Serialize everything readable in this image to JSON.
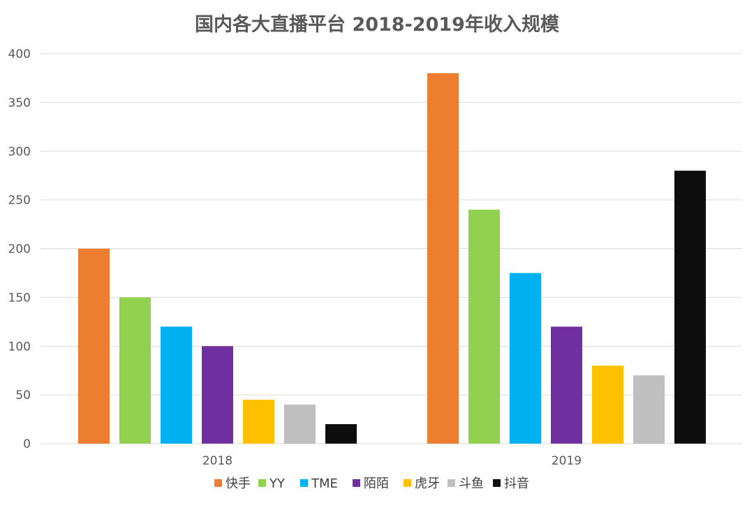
{
  "chart_data": {
    "type": "bar",
    "title": "国内各大直播平台 2018-2019年收入规模",
    "xlabel": "",
    "ylabel": "",
    "categories": [
      "2018",
      "2019"
    ],
    "ylim": [
      0,
      400
    ],
    "yticks": [
      0,
      50,
      100,
      150,
      200,
      250,
      300,
      350,
      400
    ],
    "grid": true,
    "legend_position": "bottom",
    "series": [
      {
        "name": "快手",
        "color": "#ED7D31",
        "values": [
          200,
          380
        ]
      },
      {
        "name": "YY",
        "color": "#92D050",
        "values": [
          150,
          240
        ]
      },
      {
        "name": "TME",
        "color": "#00B0F0",
        "values": [
          120,
          175
        ]
      },
      {
        "name": "陌陌",
        "color": "#7030A0",
        "values": [
          100,
          120
        ]
      },
      {
        "name": "虎牙",
        "color": "#FFC000",
        "values": [
          45,
          80
        ]
      },
      {
        "name": "斗鱼",
        "color": "#BFBFBF",
        "values": [
          40,
          70
        ]
      },
      {
        "name": "抖音",
        "color": "#0D0D0D",
        "values": [
          20,
          280
        ]
      }
    ]
  }
}
